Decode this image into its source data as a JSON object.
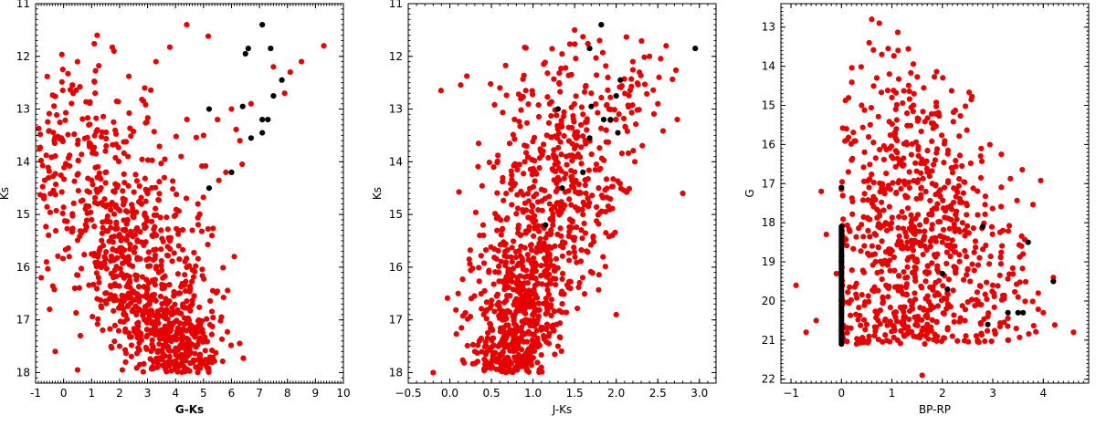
{
  "chart_data": [
    {
      "type": "scatter",
      "xlabel": "G-Ks",
      "ylabel": "Ks",
      "xlim": [
        -1,
        10
      ],
      "ylim": [
        18.2,
        11.0
      ],
      "y_inverted": true,
      "xticks": [
        -1,
        0,
        1,
        2,
        3,
        4,
        5,
        6,
        7,
        8,
        9,
        10
      ],
      "yticks": [
        11,
        12,
        13,
        14,
        15,
        16,
        17,
        18
      ],
      "grid": false,
      "series": [
        {
          "color": "#e60000",
          "sample_points": [
            [
              3.5,
              16.8
            ],
            [
              2.0,
              17.5
            ],
            [
              3.1,
              17.2
            ],
            [
              4.1,
              16.5
            ],
            [
              2.6,
              16.9
            ],
            [
              3.0,
              16.4
            ],
            [
              3.4,
              16.1
            ],
            [
              2.9,
              17.0
            ],
            [
              3.7,
              16.7
            ],
            [
              4.4,
              16.0
            ],
            [
              1.2,
              16.6
            ],
            [
              0.6,
              17.3
            ],
            [
              2.2,
              15.9
            ],
            [
              3.8,
              15.5
            ],
            [
              4.6,
              15.3
            ],
            [
              2.5,
              15.0
            ],
            [
              3.0,
              14.6
            ],
            [
              3.6,
              14.3
            ],
            [
              4.2,
              13.9
            ],
            [
              5.0,
              13.5
            ],
            [
              5.5,
              13.2
            ],
            [
              6.0,
              13.0
            ],
            [
              6.7,
              12.9
            ],
            [
              7.5,
              12.2
            ],
            [
              8.5,
              12.1
            ],
            [
              9.3,
              11.8
            ],
            [
              1.8,
              11.9
            ],
            [
              1.2,
              11.6
            ],
            [
              2.9,
              12.6
            ],
            [
              3.3,
              12.1
            ],
            [
              4.4,
              11.4
            ],
            [
              0.2,
              15.8
            ],
            [
              -0.8,
              16.2
            ],
            [
              -0.3,
              17.6
            ],
            [
              0.5,
              17.95
            ],
            [
              2.1,
              17.95
            ],
            [
              3.9,
              17.8
            ],
            [
              1.5,
              14.4
            ],
            [
              0.9,
              13.3
            ],
            [
              2.3,
              13.9
            ],
            [
              4.8,
              14.8
            ],
            [
              5.3,
              15.4
            ],
            [
              6.1,
              15.8
            ],
            [
              5.8,
              14.2
            ],
            [
              6.3,
              13.6
            ],
            [
              7.9,
              12.7
            ],
            [
              8.1,
              12.3
            ],
            [
              1.0,
              15.1
            ],
            [
              0.4,
              16.4
            ],
            [
              -0.5,
              16.8
            ]
          ]
        },
        {
          "color": "#000000",
          "sample_points": [
            [
              7.1,
              11.4
            ],
            [
              6.6,
              11.85
            ],
            [
              7.4,
              11.85
            ],
            [
              6.5,
              11.95
            ],
            [
              7.8,
              12.45
            ],
            [
              7.5,
              12.75
            ],
            [
              5.2,
              13.0
            ],
            [
              6.4,
              12.95
            ],
            [
              7.1,
              13.2
            ],
            [
              7.3,
              13.2
            ],
            [
              7.1,
              13.45
            ],
            [
              6.7,
              13.55
            ],
            [
              6.0,
              14.2
            ],
            [
              5.2,
              14.5
            ]
          ]
        }
      ]
    },
    {
      "type": "scatter",
      "xlabel": "J-Ks",
      "ylabel": "Ks",
      "xlim": [
        -0.5,
        3.2
      ],
      "ylim": [
        18.2,
        11.0
      ],
      "y_inverted": true,
      "xticks": [
        -0.5,
        0.0,
        0.5,
        1.0,
        1.5,
        2.0,
        2.5,
        3.0
      ],
      "xtick_labels": [
        "−0.5",
        "0.0",
        "0.5",
        "1.0",
        "1.5",
        "2.0",
        "2.5",
        "3.0"
      ],
      "yticks": [
        11,
        12,
        13,
        14,
        15,
        16,
        17,
        18
      ],
      "grid": false,
      "series": [
        {
          "color": "#e60000",
          "sample_points": [
            [
              0.8,
              16.6
            ],
            [
              0.7,
              17.1
            ],
            [
              0.9,
              16.3
            ],
            [
              1.0,
              16.0
            ],
            [
              0.6,
              16.8
            ],
            [
              0.85,
              17.4
            ],
            [
              1.1,
              15.6
            ],
            [
              0.75,
              15.9
            ],
            [
              0.95,
              15.3
            ],
            [
              1.2,
              14.8
            ],
            [
              1.3,
              14.3
            ],
            [
              1.4,
              13.9
            ],
            [
              1.5,
              13.5
            ],
            [
              1.6,
              13.1
            ],
            [
              1.7,
              12.7
            ],
            [
              1.9,
              12.4
            ],
            [
              2.2,
              12.1
            ],
            [
              2.4,
              12.0
            ],
            [
              2.6,
              11.8
            ],
            [
              1.5,
              11.5
            ],
            [
              1.8,
              11.7
            ],
            [
              2.5,
              12.9
            ],
            [
              2.8,
              14.6
            ],
            [
              2.0,
              16.9
            ],
            [
              0.3,
              17.6
            ],
            [
              -0.2,
              18.0
            ],
            [
              0.1,
              16.5
            ],
            [
              0.4,
              15.2
            ],
            [
              0.9,
              14.0
            ],
            [
              1.2,
              12.9
            ],
            [
              1.1,
              17.9
            ],
            [
              1.3,
              17.5
            ],
            [
              0.5,
              17.8
            ],
            [
              1.45,
              16.4
            ],
            [
              1.6,
              15.0
            ]
          ]
        },
        {
          "color": "#000000",
          "sample_points": [
            [
              1.82,
              11.4
            ],
            [
              1.68,
              11.85
            ],
            [
              2.95,
              11.85
            ],
            [
              2.05,
              12.45
            ],
            [
              2.0,
              12.75
            ],
            [
              1.3,
              13.0
            ],
            [
              1.7,
              12.95
            ],
            [
              1.85,
              13.2
            ],
            [
              1.93,
              13.2
            ],
            [
              2.02,
              13.45
            ],
            [
              1.68,
              13.55
            ],
            [
              1.6,
              14.2
            ],
            [
              1.35,
              14.5
            ],
            [
              1.15,
              15.2
            ]
          ]
        }
      ]
    },
    {
      "type": "scatter",
      "xlabel": "BP-RP",
      "ylabel": "G",
      "xlim": [
        -1.2,
        4.9
      ],
      "ylim": [
        22.1,
        12.4
      ],
      "y_inverted": true,
      "xticks": [
        -1,
        0,
        1,
        2,
        3,
        4
      ],
      "xtick_labels": [
        "−1",
        "0",
        "1",
        "2",
        "3",
        "4"
      ],
      "yticks": [
        13,
        14,
        15,
        16,
        17,
        18,
        19,
        20,
        21,
        22
      ],
      "grid": false,
      "series": [
        {
          "color": "#e60000",
          "sample_points": [
            [
              0.6,
              12.8
            ],
            [
              0.75,
              12.9
            ],
            [
              0.55,
              13.4
            ],
            [
              0.7,
              14.3
            ],
            [
              0.4,
              15.0
            ],
            [
              1.0,
              14.8
            ],
            [
              1.3,
              16.0
            ],
            [
              1.8,
              17.0
            ],
            [
              2.0,
              18.5
            ],
            [
              2.5,
              19.2
            ],
            [
              3.0,
              19.6
            ],
            [
              3.5,
              19.9
            ],
            [
              4.0,
              20.3
            ],
            [
              4.6,
              20.8
            ],
            [
              -0.5,
              20.5
            ],
            [
              -0.9,
              19.6
            ],
            [
              -0.4,
              17.2
            ],
            [
              0.2,
              16.4
            ],
            [
              1.6,
              21.9
            ],
            [
              1.2,
              20.2
            ],
            [
              1.5,
              19.0
            ],
            [
              2.2,
              20.9
            ],
            [
              3.3,
              21.0
            ],
            [
              0.3,
              21.1
            ],
            [
              0.9,
              18.2
            ],
            [
              2.7,
              17.8
            ],
            [
              3.2,
              18.2
            ],
            [
              3.9,
              19.8
            ],
            [
              0.1,
              15.6
            ],
            [
              1.1,
              15.9
            ],
            [
              2.9,
              20.4
            ],
            [
              1.9,
              19.8
            ],
            [
              1.4,
              18.6
            ],
            [
              2.4,
              18.0
            ],
            [
              0.5,
              20.6
            ],
            [
              -0.3,
              18.3
            ],
            [
              -0.1,
              19.3
            ],
            [
              3.6,
              18.8
            ],
            [
              4.2,
              19.4
            ],
            [
              1.7,
              20.6
            ],
            [
              -0.7,
              20.8
            ],
            [
              0.8,
              13.7
            ],
            [
              1.3,
              15.2
            ],
            [
              2.2,
              16.6
            ]
          ]
        },
        {
          "color": "#000000",
          "sample_points": [
            [
              2.8,
              18.1
            ],
            [
              3.7,
              18.5
            ],
            [
              4.2,
              19.5
            ],
            [
              2.0,
              19.3
            ],
            [
              3.3,
              20.3
            ],
            [
              3.5,
              20.3
            ],
            [
              3.6,
              20.3
            ],
            [
              2.9,
              20.6
            ],
            [
              2.1,
              19.7
            ],
            [
              0.0,
              17.1
            ],
            [
              0.0,
              19.0
            ],
            [
              0.0,
              20.0
            ]
          ],
          "vertical_segment": {
            "x": 0.0,
            "y_from": 18.1,
            "y_to": 21.1
          }
        }
      ]
    }
  ]
}
